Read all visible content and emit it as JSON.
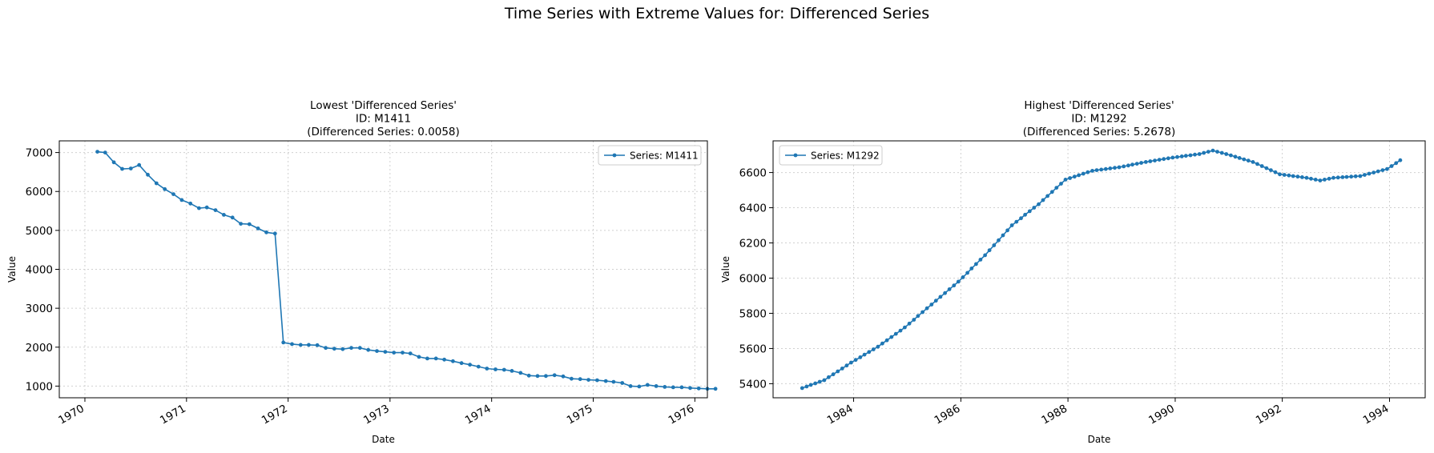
{
  "suptitle": "Time Series with Extreme Values for: Differenced Series",
  "colors": {
    "series": "#1f77b4",
    "grid": "#d0d0d0",
    "axis": "#000000",
    "legend_border": "#cccccc"
  },
  "chart_data": [
    {
      "type": "line",
      "title_lines": [
        "Lowest 'Differenced Series'",
        "ID: M1411",
        "(Differenced Series: 0.0058)"
      ],
      "xlabel": "Date",
      "ylabel": "Value",
      "xlim": [
        "1969-10-01",
        "1976-02-15"
      ],
      "ylim": [
        700,
        7300
      ],
      "xticks": [
        "1970-01-01",
        "1971-01-01",
        "1972-01-01",
        "1973-01-01",
        "1974-01-01",
        "1975-01-01",
        "1976-01-01"
      ],
      "xtick_labels": [
        "1970",
        "1971",
        "1972",
        "1973",
        "1974",
        "1975",
        "1976"
      ],
      "yticks": [
        1000,
        2000,
        3000,
        4000,
        5000,
        6000,
        7000
      ],
      "grid": true,
      "legend": {
        "position": "upper-right",
        "label": "Series: M1411"
      },
      "series": [
        {
          "name": "Series: M1411",
          "start": "1970-02",
          "frequency": "monthly",
          "values": [
            7020,
            7000,
            6750,
            6580,
            6590,
            6680,
            6430,
            6210,
            6060,
            5930,
            5780,
            5690,
            5570,
            5590,
            5520,
            5400,
            5330,
            5170,
            5160,
            5050,
            4950,
            4920,
            2120,
            2080,
            2060,
            2060,
            2050,
            1980,
            1960,
            1950,
            1980,
            1980,
            1930,
            1900,
            1880,
            1860,
            1860,
            1840,
            1750,
            1710,
            1710,
            1680,
            1640,
            1590,
            1550,
            1500,
            1450,
            1430,
            1420,
            1390,
            1340,
            1270,
            1260,
            1260,
            1280,
            1250,
            1190,
            1180,
            1160,
            1150,
            1130,
            1110,
            1080,
            1000,
            990,
            1030,
            1000,
            980,
            970,
            970,
            950,
            940,
            930,
            930
          ]
        }
      ]
    },
    {
      "type": "line",
      "title_lines": [
        "Highest 'Differenced Series'",
        "ID: M1292",
        "(Differenced Series: 5.2678)"
      ],
      "xlabel": "Date",
      "ylabel": "Value",
      "xlim": [
        "1982-07-01",
        "1994-09-01"
      ],
      "ylim": [
        5320,
        6780
      ],
      "xticks": [
        "1984-01-01",
        "1986-01-01",
        "1988-01-01",
        "1990-01-01",
        "1992-01-01",
        "1994-01-01"
      ],
      "xtick_labels": [
        "1984",
        "1986",
        "1988",
        "1990",
        "1992",
        "1994"
      ],
      "yticks": [
        5400,
        5600,
        5800,
        6000,
        6200,
        6400,
        6600
      ],
      "grid": true,
      "legend": {
        "position": "upper-left",
        "label": "Series: M1292"
      },
      "series": [
        {
          "name": "Series: M1292",
          "start": "1983-01",
          "frequency": "monthly",
          "anchors": [
            [
              "1983-01",
              5375
            ],
            [
              "1983-06",
              5420
            ],
            [
              "1983-12",
              5520
            ],
            [
              "1984-06",
              5610
            ],
            [
              "1984-12",
              5720
            ],
            [
              "1985-06",
              5850
            ],
            [
              "1985-12",
              5980
            ],
            [
              "1986-06",
              6130
            ],
            [
              "1986-12",
              6300
            ],
            [
              "1987-06",
              6420
            ],
            [
              "1987-12",
              6560
            ],
            [
              "1988-06",
              6610
            ],
            [
              "1988-12",
              6630
            ],
            [
              "1989-06",
              6660
            ],
            [
              "1989-12",
              6685
            ],
            [
              "1990-06",
              6705
            ],
            [
              "1990-09",
              6725
            ],
            [
              "1990-12",
              6705
            ],
            [
              "1991-06",
              6660
            ],
            [
              "1991-12",
              6590
            ],
            [
              "1992-06",
              6570
            ],
            [
              "1992-09",
              6555
            ],
            [
              "1992-12",
              6570
            ],
            [
              "1993-06",
              6580
            ],
            [
              "1993-12",
              6620
            ],
            [
              "1994-03",
              6670
            ]
          ]
        }
      ]
    }
  ]
}
